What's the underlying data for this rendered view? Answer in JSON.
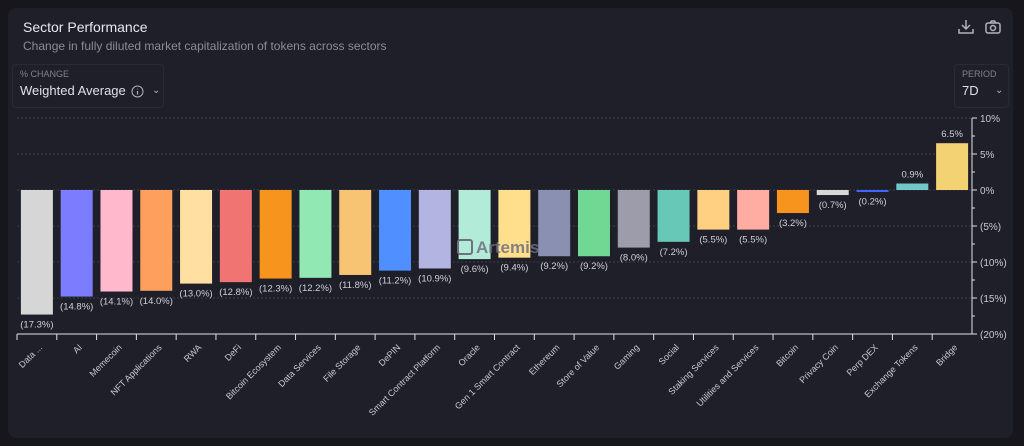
{
  "header": {
    "title": "Sector Performance",
    "subtitle": "Change in fully diluted market capitalization of tokens across sectors"
  },
  "toolbar": {
    "download_icon": "download-icon",
    "camera_icon": "camera-icon"
  },
  "controls": {
    "change": {
      "label": "% CHANGE",
      "value": "Weighted Average"
    },
    "period": {
      "label": "PERIOD",
      "value": "7D"
    }
  },
  "chart_data": {
    "type": "bar",
    "title": "",
    "xlabel": "",
    "ylabel": "",
    "ylim": [
      -20,
      10
    ],
    "yticks": [
      10,
      5,
      0,
      -5,
      -10,
      -15,
      -20
    ],
    "ytick_labels": [
      "10%",
      "5%",
      "0%",
      "(5%)",
      "(10%)",
      "(15%)",
      "(20%)"
    ],
    "grid": true,
    "y_axis_position": "right",
    "categories": [
      "Data ...",
      "AI",
      "Memecoin",
      "NFT Applications",
      "RWA",
      "DeFi",
      "Bitcoin Ecosystem",
      "Data Services",
      "File Storage",
      "DePIN",
      "Smart Contract Platform",
      "Oracle",
      "Gen 1 Smart Contract",
      "Ethereum",
      "Store of Value",
      "Gaming",
      "Social",
      "Staking Services",
      "Utilities and Services",
      "Bitcoin",
      "Privacy Coin",
      "Perp DEX",
      "Exchange Tokens",
      "Bridge"
    ],
    "values": [
      -17.3,
      -14.8,
      -14.1,
      -14.0,
      -13.0,
      -12.8,
      -12.3,
      -12.2,
      -11.8,
      -11.2,
      -10.9,
      -9.6,
      -9.4,
      -9.2,
      -9.2,
      -8.0,
      -7.2,
      -5.5,
      -5.5,
      -3.2,
      -0.7,
      -0.2,
      0.9,
      6.5
    ],
    "data_labels": [
      "(17.3%)",
      "(14.8%)",
      "(14.1%)",
      "(14.0%)",
      "(13.0%)",
      "(12.8%)",
      "(12.3%)",
      "(12.2%)",
      "(11.8%)",
      "(11.2%)",
      "(10.9%)",
      "(9.6%)",
      "(9.4%)",
      "(9.2%)",
      "(9.2%)",
      "(8.0%)",
      "(7.2%)",
      "(5.5%)",
      "(5.5%)",
      "(3.2%)",
      "(0.7%)",
      "(0.2%)",
      "0.9%",
      "6.5%"
    ],
    "colors": [
      "#d6d6d6",
      "#7c7cff",
      "#ffb8cc",
      "#ff9f5e",
      "#ffe0a2",
      "#f07472",
      "#f7941d",
      "#92e8b2",
      "#f7c474",
      "#4f8fff",
      "#b4b4e2",
      "#b2ecd8",
      "#ffdf8c",
      "#8a90b2",
      "#70d892",
      "#9c9caa",
      "#68c8b8",
      "#ffd082",
      "#ffaca2",
      "#f7941d",
      "#d8d8d8",
      "#4262ff",
      "#72c8c6",
      "#f2d272"
    ]
  },
  "watermark": "Artemis"
}
